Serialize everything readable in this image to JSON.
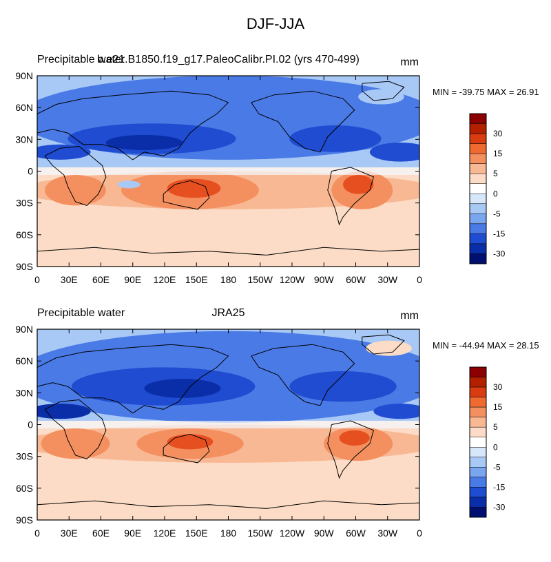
{
  "title": "DJF-JJA",
  "panels": [
    {
      "left_title": "Precipitable water",
      "center_title": "b.e21.B1850.f19_g17.PaleoCalibr.PI.02 (yrs 470-499)",
      "units": "mm",
      "minmax": "MIN = -39.75 MAX =  26.91"
    },
    {
      "left_title": "Precipitable water",
      "center_title": "JRA25",
      "units": "mm",
      "minmax": "MIN = -44.94 MAX =  28.15"
    }
  ],
  "lat_labels": [
    "90N",
    "60N",
    "30N",
    "0",
    "30S",
    "60S",
    "90S"
  ],
  "lon_labels": [
    "0",
    "30E",
    "60E",
    "90E",
    "120E",
    "150E",
    "180",
    "150W",
    "120W",
    "90W",
    "60W",
    "30W",
    "0"
  ],
  "colorbar": {
    "labels": [
      "30",
      "15",
      "5",
      "0",
      "-5",
      "-15",
      "-30"
    ],
    "colors": [
      "#8b0000",
      "#b22000",
      "#d83c10",
      "#ee6a30",
      "#f49060",
      "#f8b894",
      "#fcdcc6",
      "#ffffff",
      "#d6e6fb",
      "#a8c8f6",
      "#7aa6f0",
      "#4a7ae6",
      "#1f4cd0",
      "#0a2ea8",
      "#001070"
    ]
  },
  "map_colors": {
    "pos_light": "#fcdcc6",
    "pos_mid": "#f8b894",
    "pos_strong": "#f49060",
    "pos_dark": "#e65020",
    "neg_light": "#a8c8f6",
    "neg_mid": "#4a7ae6",
    "neg_strong": "#1f4cd0",
    "neg_dark": "#0a2ea8"
  }
}
